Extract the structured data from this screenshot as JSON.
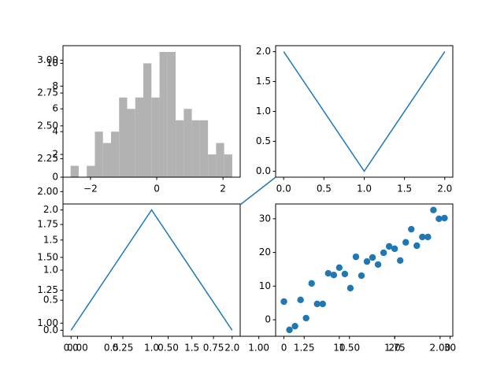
{
  "chart_data": [
    {
      "type": "blank",
      "xlim": [
        -0.08,
        2.07
      ],
      "ylim": [
        0.9,
        3.11
      ],
      "xticks": [
        {
          "value": 0,
          "label": "0.00"
        },
        {
          "value": 0.25,
          "label": "0.25"
        },
        {
          "value": 0.5,
          "label": "0.50"
        },
        {
          "value": 0.75,
          "label": "0.75"
        },
        {
          "value": 1,
          "label": "1.00"
        },
        {
          "value": 1.25,
          "label": "1.25"
        },
        {
          "value": 1.5,
          "label": "1.50"
        },
        {
          "value": 1.75,
          "label": "1.75"
        },
        {
          "value": 2,
          "label": "2.00"
        }
      ],
      "yticks": [
        {
          "value": 1,
          "label": "1.00"
        },
        {
          "value": 1.25,
          "label": "1.25"
        },
        {
          "value": 1.5,
          "label": "1.50"
        },
        {
          "value": 1.75,
          "label": "1.75"
        },
        {
          "value": 2,
          "label": "2.00"
        },
        {
          "value": 2.25,
          "label": "2.25"
        },
        {
          "value": 2.5,
          "label": "2.50"
        },
        {
          "value": 2.75,
          "label": "2.75"
        },
        {
          "value": 3,
          "label": "3.00"
        }
      ]
    },
    {
      "type": "histogram",
      "color": "#b2b2b2",
      "bins": [
        -2.6,
        -2.356,
        -2.112,
        -1.868,
        -1.624,
        -1.38,
        -1.136,
        -0.892,
        -0.648,
        -0.404,
        -0.16,
        0.084,
        0.328,
        0.572,
        0.816,
        1.06,
        1.304,
        1.548,
        1.792,
        2.036,
        2.28
      ],
      "values": [
        1,
        0,
        1,
        4,
        3,
        4,
        7,
        6,
        7,
        10,
        7,
        11,
        11,
        5,
        6,
        5,
        5,
        2,
        3,
        2
      ],
      "xlim": [
        -2.83,
        2.52
      ],
      "ylim": [
        0,
        11.55
      ],
      "xticks": [
        {
          "value": -2,
          "label": "−2"
        },
        0,
        2
      ],
      "yticks": [
        0,
        2,
        4,
        6,
        8,
        10
      ]
    },
    {
      "type": "line",
      "color": "#1f77b4",
      "x": [
        0,
        1,
        2
      ],
      "values": [
        2,
        0,
        2
      ],
      "xlim": [
        -0.1,
        2.1
      ],
      "ylim": [
        -0.1,
        2.1
      ],
      "xticks": [
        {
          "value": 0,
          "label": "0.0"
        },
        0.5,
        {
          "value": 1,
          "label": "1.0"
        },
        1.5,
        {
          "value": 2,
          "label": "2.0"
        }
      ],
      "yticks": [
        {
          "value": 0,
          "label": "0.0"
        },
        0.5,
        {
          "value": 1,
          "label": "1.0"
        },
        1.5,
        {
          "value": 2,
          "label": "2.0"
        }
      ]
    },
    {
      "type": "line",
      "color": "#1f77b4",
      "x": [
        0,
        1,
        2
      ],
      "values": [
        0,
        2,
        0
      ],
      "xlim": [
        -0.1,
        2.1
      ],
      "ylim": [
        -0.1,
        2.1
      ],
      "xticks": [
        {
          "value": 0,
          "label": "0.0"
        },
        0.5,
        {
          "value": 1,
          "label": "1.0"
        },
        1.5,
        {
          "value": 2,
          "label": "2.0"
        }
      ],
      "yticks": [
        {
          "value": 0,
          "label": "0.0"
        },
        0.5,
        {
          "value": 1,
          "label": "1.0"
        },
        1.5,
        {
          "value": 2,
          "label": "2.0"
        }
      ]
    },
    {
      "type": "scatter",
      "color": "#1f77b4",
      "x": [
        0,
        1,
        2,
        3,
        4,
        5,
        6,
        7,
        8,
        9,
        10,
        11,
        12,
        13,
        14,
        15,
        16,
        17,
        18,
        19,
        20,
        21,
        22,
        23,
        24,
        25,
        26,
        27,
        28,
        29
      ],
      "values": [
        5.4,
        -3,
        -1.9,
        5.9,
        0.5,
        10.8,
        4.7,
        4.7,
        13.8,
        13.3,
        15.5,
        13.6,
        9.4,
        18.7,
        13.1,
        17.3,
        18.5,
        16.4,
        19.9,
        21.8,
        21.1,
        17.6,
        23,
        26.9,
        22,
        24.6,
        24.6,
        32.6,
        30,
        30.2
      ],
      "xlim": [
        -1.5,
        30.5
      ],
      "ylim": [
        -4.9,
        34.4
      ],
      "xticks": [
        0,
        10,
        20,
        30
      ],
      "yticks": [
        0,
        10,
        20,
        30
      ]
    }
  ]
}
